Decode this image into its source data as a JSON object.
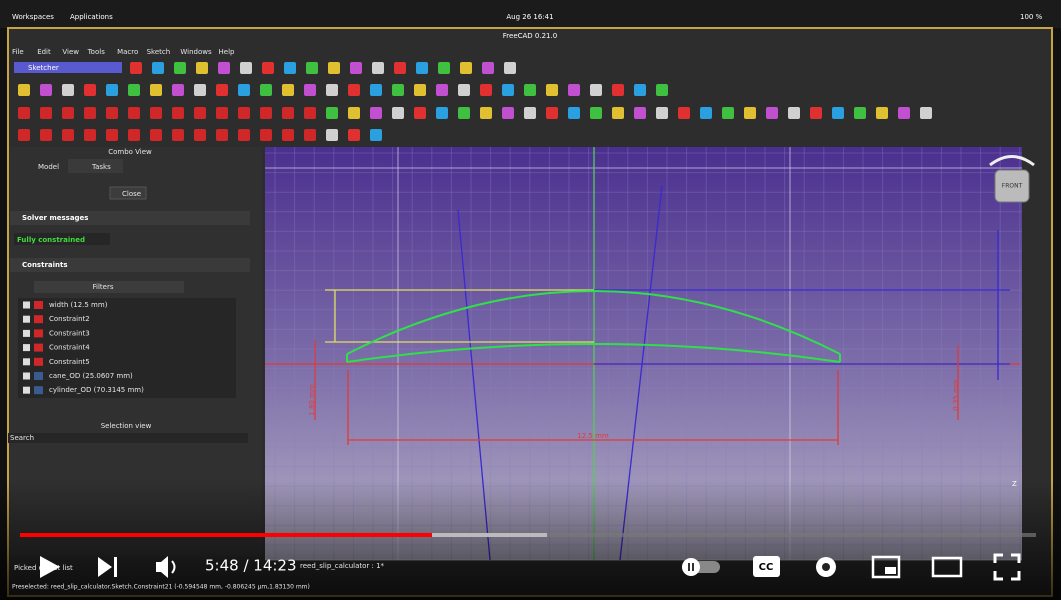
{
  "topbar": {
    "workspaces": "Workspaces",
    "applications": "Applications",
    "clock": "Aug 26  16:41",
    "battery": "100 %"
  },
  "window": {
    "title": "FreeCAD 0.21.0",
    "menu": [
      "File",
      "Edit",
      "View",
      "Tools",
      "Macro",
      "Sketch",
      "Windows",
      "Help"
    ],
    "workbench": "Sketcher"
  },
  "combo_view": {
    "title": "Combo View",
    "tabs": [
      "Model",
      "Tasks"
    ],
    "close": "Close",
    "solver_header": "Solver messages",
    "solver_status": "Fully constrained",
    "constraints_header": "Constraints",
    "filters": "Filters",
    "constraints": [
      "width (12.5 mm)",
      "Constraint2",
      "Constraint3",
      "Constraint4",
      "Constraint5",
      "cane_OD (25.0607 mm)",
      "cylinder_OD (70.3145 mm)"
    ],
    "selection_view": "Selection view",
    "search": "Search",
    "picked": "Picked object list"
  },
  "viewport": {
    "width_dim": "12.5 mm",
    "left_dim": "1.80 mm",
    "right_dim": "0.35 mm",
    "navcube": "FRONT",
    "tab": "reed_slip_calculator : 1*"
  },
  "status": "Preselected: reed_slip_calculator.Sketch.Constraint21 (-0.594548 mm, -0.806245 μm,1.83130 mm)",
  "player": {
    "time": "5:48 / 14:23"
  }
}
